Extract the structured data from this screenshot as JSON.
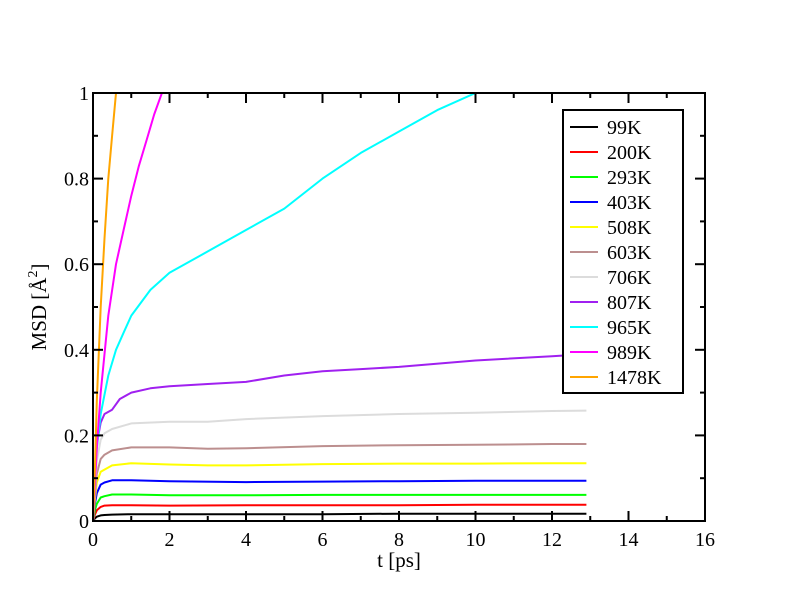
{
  "chart_data": {
    "type": "line",
    "title": "",
    "xlabel": "t [ps]",
    "ylabel_text": "MSD [",
    "ylabel_unit": "Å",
    "ylabel_sup": "2",
    "ylabel_close": "]",
    "xlim": [
      0,
      16
    ],
    "ylim": [
      0,
      1
    ],
    "x_ticks": [
      "0",
      "2",
      "4",
      "6",
      "8",
      "10",
      "12",
      "14",
      "16"
    ],
    "y_ticks": [
      "0",
      "0.2",
      "0.4",
      "0.6",
      "0.8",
      "1"
    ],
    "x_tick_values": [
      0,
      2,
      4,
      6,
      8,
      10,
      12,
      14,
      16
    ],
    "y_tick_values": [
      0,
      0.2,
      0.4,
      0.6,
      0.8,
      1
    ],
    "grid": false,
    "legend_position": "top-right",
    "series": [
      {
        "name": "99K",
        "color": "#000000",
        "x": [
          0,
          0.05,
          0.1,
          0.2,
          0.3,
          0.5,
          1,
          2,
          4,
          6,
          8,
          10,
          12,
          12.9
        ],
        "y": [
          0,
          0.006,
          0.01,
          0.013,
          0.014,
          0.015,
          0.016,
          0.016,
          0.016,
          0.016,
          0.017,
          0.017,
          0.017,
          0.017
        ]
      },
      {
        "name": "200K",
        "color": "#ff0000",
        "x": [
          0,
          0.05,
          0.1,
          0.2,
          0.3,
          0.5,
          1,
          2,
          4,
          6,
          8,
          10,
          12,
          12.9
        ],
        "y": [
          0,
          0.015,
          0.025,
          0.033,
          0.036,
          0.037,
          0.037,
          0.036,
          0.037,
          0.037,
          0.037,
          0.038,
          0.038,
          0.038
        ]
      },
      {
        "name": "293K",
        "color": "#00ff00",
        "x": [
          0,
          0.05,
          0.1,
          0.2,
          0.3,
          0.5,
          1,
          2,
          4,
          6,
          8,
          10,
          12,
          12.9
        ],
        "y": [
          0,
          0.025,
          0.04,
          0.055,
          0.058,
          0.062,
          0.062,
          0.06,
          0.06,
          0.061,
          0.061,
          0.061,
          0.061,
          0.061
        ]
      },
      {
        "name": "403K",
        "color": "#0000ff",
        "x": [
          0,
          0.05,
          0.1,
          0.2,
          0.3,
          0.5,
          1,
          2,
          4,
          6,
          8,
          10,
          12,
          12.9
        ],
        "y": [
          0,
          0.04,
          0.065,
          0.085,
          0.09,
          0.095,
          0.095,
          0.093,
          0.091,
          0.092,
          0.093,
          0.094,
          0.094,
          0.094
        ]
      },
      {
        "name": "508K",
        "color": "#ffff00",
        "x": [
          0,
          0.05,
          0.1,
          0.2,
          0.3,
          0.5,
          1,
          2,
          3,
          4,
          6,
          8,
          10,
          12,
          12.9
        ],
        "y": [
          0,
          0.05,
          0.09,
          0.115,
          0.12,
          0.13,
          0.135,
          0.132,
          0.13,
          0.13,
          0.133,
          0.134,
          0.134,
          0.135,
          0.135
        ]
      },
      {
        "name": "603K",
        "color": "#bc8f8f",
        "x": [
          0,
          0.05,
          0.1,
          0.2,
          0.3,
          0.5,
          1,
          2,
          3,
          4,
          6,
          8,
          10,
          12,
          12.9
        ],
        "y": [
          0,
          0.06,
          0.11,
          0.145,
          0.155,
          0.165,
          0.172,
          0.172,
          0.169,
          0.17,
          0.175,
          0.177,
          0.178,
          0.18,
          0.18
        ]
      },
      {
        "name": "706K",
        "color": "#dcdcdc",
        "x": [
          0,
          0.05,
          0.1,
          0.2,
          0.3,
          0.5,
          1,
          2,
          3,
          4,
          6,
          8,
          10,
          12,
          12.9
        ],
        "y": [
          0,
          0.08,
          0.14,
          0.19,
          0.205,
          0.215,
          0.228,
          0.232,
          0.232,
          0.238,
          0.245,
          0.25,
          0.253,
          0.257,
          0.258
        ]
      },
      {
        "name": "807K",
        "color": "#a020f0",
        "x": [
          0,
          0.05,
          0.1,
          0.2,
          0.3,
          0.5,
          0.7,
          1,
          1.5,
          2,
          3,
          4,
          5,
          6,
          7,
          8,
          10,
          12,
          12.9
        ],
        "y": [
          0,
          0.1,
          0.18,
          0.23,
          0.25,
          0.26,
          0.285,
          0.3,
          0.31,
          0.315,
          0.32,
          0.325,
          0.34,
          0.35,
          0.355,
          0.36,
          0.375,
          0.385,
          0.39
        ]
      },
      {
        "name": "965K",
        "color": "#00ffff",
        "x": [
          0,
          0.05,
          0.1,
          0.2,
          0.4,
          0.6,
          0.8,
          1,
          1.5,
          2,
          3,
          4,
          5,
          6,
          7,
          8,
          9,
          10
        ],
        "y": [
          0,
          0.1,
          0.17,
          0.25,
          0.34,
          0.4,
          0.44,
          0.48,
          0.54,
          0.58,
          0.63,
          0.68,
          0.73,
          0.8,
          0.86,
          0.91,
          0.96,
          1.0
        ]
      },
      {
        "name": "989K",
        "color": "#ff00ff",
        "x": [
          0,
          0.1,
          0.2,
          0.4,
          0.6,
          0.8,
          1,
          1.2,
          1.4,
          1.6,
          1.8
        ],
        "y": [
          0,
          0.17,
          0.3,
          0.48,
          0.6,
          0.68,
          0.76,
          0.83,
          0.89,
          0.95,
          1.0
        ]
      },
      {
        "name": "1478K",
        "color": "#ffa500",
        "x": [
          0,
          0.05,
          0.1,
          0.2,
          0.3,
          0.4,
          0.5,
          0.6
        ],
        "y": [
          0,
          0.12,
          0.28,
          0.5,
          0.66,
          0.8,
          0.9,
          1.0
        ]
      }
    ]
  }
}
